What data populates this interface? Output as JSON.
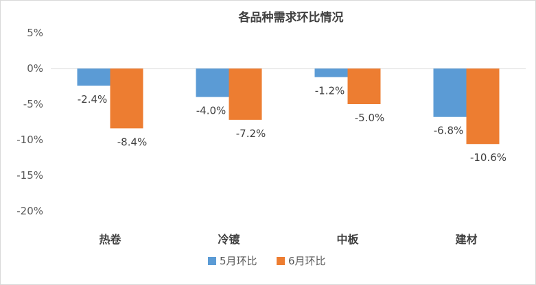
{
  "chart_data": {
    "type": "bar",
    "title": "各品种需求环比情况",
    "xlabel": "",
    "ylabel": "",
    "categories": [
      "热卷",
      "冷镀",
      "中板",
      "建材"
    ],
    "series": [
      {
        "name": "5月环比",
        "values": [
          -2.4,
          -4.0,
          -1.2,
          -6.8
        ],
        "labels": [
          "-2.4%",
          "-4.0%",
          "-1.2%",
          "-6.8%"
        ],
        "color": "#5b9bd5"
      },
      {
        "name": "6月环比",
        "values": [
          -8.4,
          -7.2,
          -5.0,
          -10.6
        ],
        "labels": [
          "-8.4%",
          "-7.2%",
          "-5.0%",
          "-10.6%"
        ],
        "color": "#ed7d31"
      }
    ],
    "ylim": [
      -20,
      5
    ],
    "yticks": [
      5,
      0,
      -5,
      -10,
      -15,
      -20
    ],
    "ytick_labels": [
      "5%",
      "0%",
      "-5%",
      "-10%",
      "-15%",
      "-20%"
    ],
    "grid": false,
    "legend_position": "bottom-center"
  }
}
